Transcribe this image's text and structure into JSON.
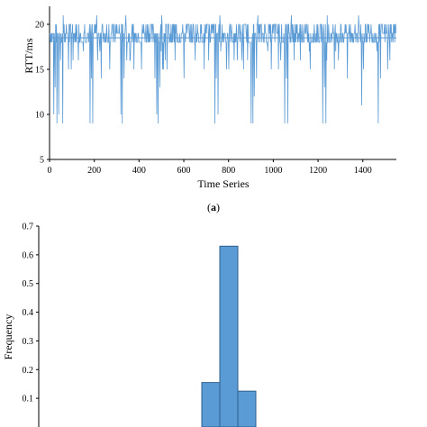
{
  "figure": {
    "caption": {
      "prefix": "(",
      "letter": "a",
      "suffix": ")"
    }
  },
  "chart_data": [
    {
      "type": "line",
      "title": "",
      "xlabel": "Time Series",
      "ylabel": "RTT/ms",
      "xlim": [
        0,
        1550
      ],
      "ylim": [
        5,
        22
      ],
      "x_ticks": [
        0,
        200,
        400,
        600,
        800,
        1000,
        1200,
        1400
      ],
      "y_ticks": [
        5,
        10,
        15,
        20
      ],
      "color": "#5b9bd5",
      "reference_line": 18.5,
      "series": [
        {
          "values_description_note": "",
          "x_start": 1,
          "x_end": 1550,
          "baseline_values": [
            18,
            19,
            20
          ],
          "dips": [
            {
              "x": 18,
              "y": 10
            },
            {
              "x": 25,
              "y": 13
            },
            {
              "x": 32,
              "y": 9
            },
            {
              "x": 40,
              "y": 10
            },
            {
              "x": 48,
              "y": 16
            },
            {
              "x": 58,
              "y": 9
            },
            {
              "x": 85,
              "y": 15
            },
            {
              "x": 180,
              "y": 9
            },
            {
              "x": 186,
              "y": 14
            },
            {
              "x": 192,
              "y": 9
            },
            {
              "x": 215,
              "y": 16
            },
            {
              "x": 230,
              "y": 14
            },
            {
              "x": 268,
              "y": 15
            },
            {
              "x": 318,
              "y": 10
            },
            {
              "x": 325,
              "y": 9
            },
            {
              "x": 332,
              "y": 14
            },
            {
              "x": 345,
              "y": 16
            },
            {
              "x": 410,
              "y": 15
            },
            {
              "x": 470,
              "y": 14
            },
            {
              "x": 478,
              "y": 10
            },
            {
              "x": 485,
              "y": 9
            },
            {
              "x": 492,
              "y": 13
            },
            {
              "x": 560,
              "y": 16
            },
            {
              "x": 600,
              "y": 14
            },
            {
              "x": 650,
              "y": 16
            },
            {
              "x": 690,
              "y": 15
            },
            {
              "x": 738,
              "y": 9
            },
            {
              "x": 745,
              "y": 14
            },
            {
              "x": 752,
              "y": 10
            },
            {
              "x": 800,
              "y": 15
            },
            {
              "x": 858,
              "y": 16
            },
            {
              "x": 900,
              "y": 9
            },
            {
              "x": 908,
              "y": 9
            },
            {
              "x": 915,
              "y": 12
            },
            {
              "x": 925,
              "y": 14
            },
            {
              "x": 990,
              "y": 15
            },
            {
              "x": 1050,
              "y": 9
            },
            {
              "x": 1058,
              "y": 14
            },
            {
              "x": 1065,
              "y": 9
            },
            {
              "x": 1120,
              "y": 16
            },
            {
              "x": 1165,
              "y": 15
            },
            {
              "x": 1220,
              "y": 9
            },
            {
              "x": 1228,
              "y": 13
            },
            {
              "x": 1235,
              "y": 9
            },
            {
              "x": 1290,
              "y": 16
            },
            {
              "x": 1330,
              "y": 14
            },
            {
              "x": 1395,
              "y": 11
            },
            {
              "x": 1402,
              "y": 15
            },
            {
              "x": 1468,
              "y": 9
            },
            {
              "x": 1478,
              "y": 14
            },
            {
              "x": 1520,
              "y": 16
            }
          ],
          "spikes": [
            {
              "x": 60,
              "y": 21
            },
            {
              "x": 210,
              "y": 21
            },
            {
              "x": 340,
              "y": 21
            },
            {
              "x": 500,
              "y": 21
            },
            {
              "x": 760,
              "y": 21
            },
            {
              "x": 930,
              "y": 21
            },
            {
              "x": 1080,
              "y": 21
            },
            {
              "x": 1240,
              "y": 21
            },
            {
              "x": 1380,
              "y": 21
            }
          ]
        }
      ]
    },
    {
      "type": "bar",
      "title": "",
      "xlabel": "",
      "ylabel": "Frequency",
      "ylim": [
        0,
        0.7
      ],
      "y_ticks": [
        "0.1",
        "0.2",
        "0.3",
        "0.4",
        "0.5",
        "0.6",
        "0.7"
      ],
      "color": "#5b9bd5",
      "edge_color": "#2e5f8f",
      "categories": [
        "",
        "",
        ""
      ],
      "values": [
        0.155,
        0.63,
        0.125
      ]
    }
  ]
}
